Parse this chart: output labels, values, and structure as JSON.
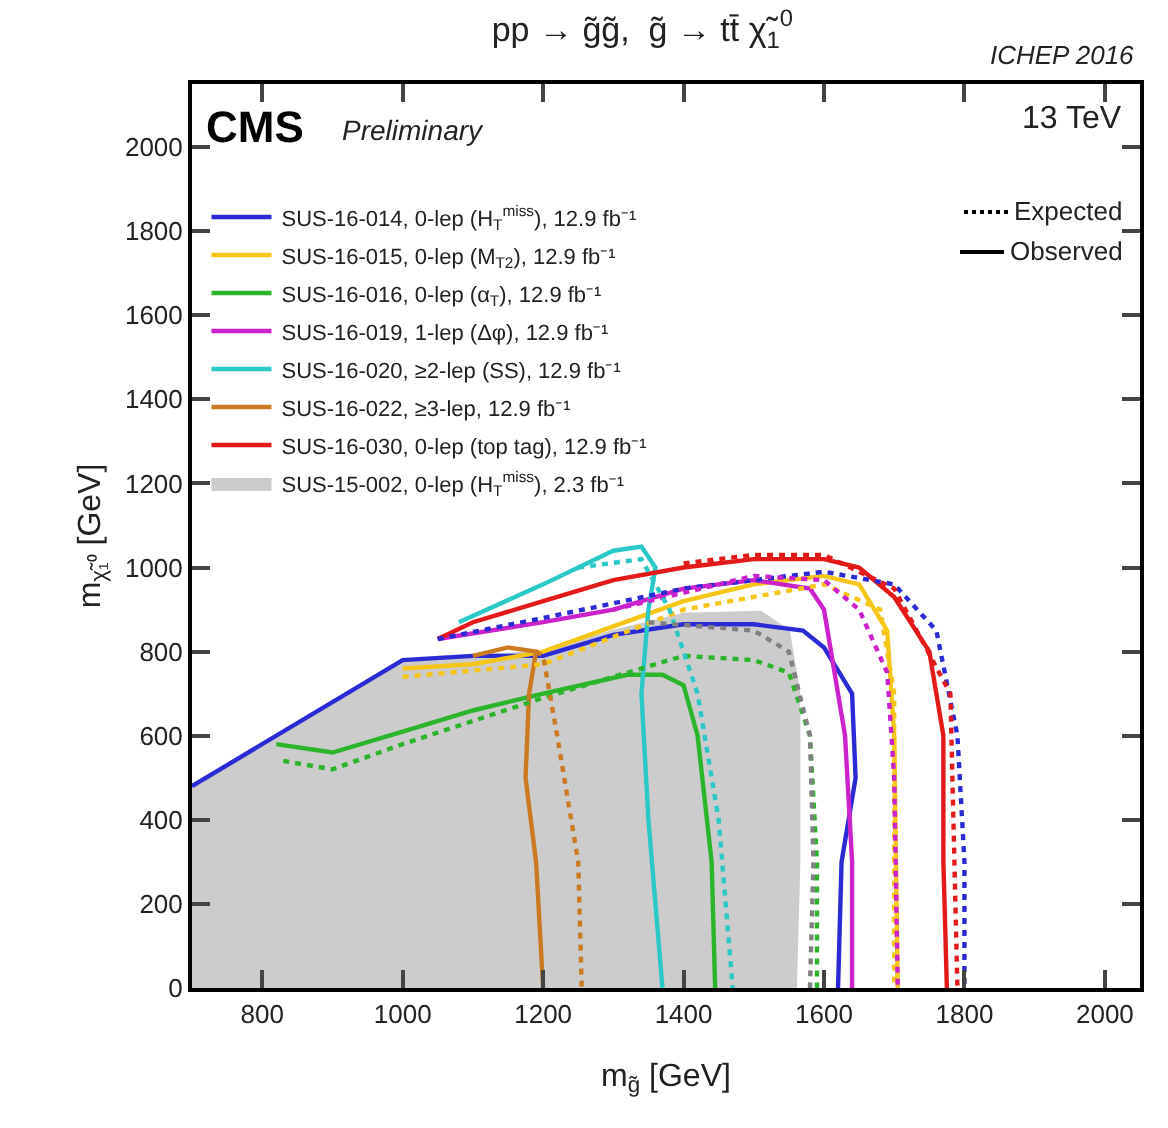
{
  "chart_data": {
    "type": "line",
    "title": "pp → g̃g̃,  g̃ → tt̄ χ̃$_{1}$$^{0}$",
    "xlabel": "m$_{g̃}$ [GeV]",
    "ylabel": "m$_{χ̃₁⁰}$ [GeV]",
    "annotations": [
      "ICHEP 2016",
      "CMS",
      "Preliminary",
      "13 TeV",
      "Expected",
      "Observed"
    ],
    "xlim": [
      700,
      2050
    ],
    "ylim": [
      0,
      2150
    ],
    "xticks": [
      800,
      1000,
      1200,
      1400,
      1600,
      1800,
      2000
    ],
    "yticks": [
      0,
      200,
      400,
      600,
      800,
      1000,
      1200,
      1400,
      1600,
      1800,
      2000
    ],
    "legend": "top left",
    "marker": "none",
    "series": [
      {
        "name": "SUS-16-014, 0-lep (H$_{T}$$^{miss}$), 12.9 fb⁻¹",
        "color": "#2b2bd6",
        "line_style": "solid",
        "x": [
          700,
          1000,
          1100,
          1200,
          1300,
          1400,
          1500,
          1570,
          1600,
          1640,
          1645,
          1625,
          1620
        ],
        "values": [
          480,
          780,
          790,
          790,
          840,
          865,
          865,
          850,
          810,
          700,
          500,
          300,
          0
        ]
      },
      {
        "name": "SUS-16-015, 0-lep (M$_{T2}$), 12.9 fb⁻¹",
        "color": "#f5c518",
        "line_style": "solid",
        "x": [
          1000,
          1100,
          1200,
          1300,
          1400,
          1500,
          1600,
          1650,
          1690,
          1700,
          1705
        ],
        "values": [
          760,
          770,
          800,
          860,
          920,
          960,
          980,
          960,
          850,
          600,
          0
        ]
      },
      {
        "name": "SUS-16-016, 0-lep (α$_{T}$), 12.9 fb⁻¹",
        "color": "#2ab52a",
        "line_style": "solid",
        "x": [
          820,
          900,
          1000,
          1100,
          1200,
          1320,
          1370,
          1400,
          1420,
          1440,
          1445
        ],
        "values": [
          580,
          560,
          610,
          660,
          700,
          745,
          745,
          720,
          600,
          300,
          0
        ]
      },
      {
        "name": "SUS-16-019, 1-lep (Δφ), 12.9 fb⁻¹",
        "color": "#cc22cc",
        "line_style": "solid",
        "x": [
          1050,
          1200,
          1300,
          1400,
          1500,
          1580,
          1600,
          1610,
          1630,
          1640,
          1640
        ],
        "values": [
          830,
          870,
          900,
          950,
          970,
          950,
          900,
          800,
          600,
          300,
          0
        ]
      },
      {
        "name": "SUS-16-020, ≥2-lep (SS), 12.9 fb⁻¹",
        "color": "#2bc8c8",
        "line_style": "solid",
        "x": [
          1080,
          1200,
          1300,
          1340,
          1360,
          1350,
          1340,
          1350,
          1370
        ],
        "values": [
          870,
          960,
          1040,
          1050,
          1000,
          900,
          700,
          400,
          0
        ]
      },
      {
        "name": "SUS-16-022, ≥3-lep, 12.9 fb⁻¹",
        "color": "#cc7a22",
        "line_style": "solid",
        "x": [
          1100,
          1150,
          1190,
          1180,
          1175,
          1190,
          1200
        ],
        "values": [
          790,
          810,
          800,
          700,
          500,
          300,
          0
        ]
      },
      {
        "name": "SUS-16-030, 0-lep (top tag), 12.9 fb⁻¹",
        "color": "#e41a1a",
        "line_style": "solid",
        "x": [
          1050,
          1100,
          1200,
          1300,
          1400,
          1500,
          1600,
          1650,
          1700,
          1750,
          1770,
          1770,
          1775
        ],
        "values": [
          830,
          870,
          920,
          970,
          1000,
          1020,
          1020,
          1000,
          930,
          800,
          600,
          300,
          0
        ]
      },
      {
        "name": "SUS-15-002, 0-lep (H$_{T}$$^{miss}$), 2.3 fb⁻¹",
        "color": "#cccccc",
        "type": "area",
        "x": [
          700,
          1000,
          1200,
          1300,
          1400,
          1510,
          1550,
          1565,
          1565,
          1560,
          700
        ],
        "values": [
          480,
          780,
          800,
          850,
          890,
          895,
          850,
          700,
          300,
          0,
          0
        ]
      },
      {
        "color": "#2b2bd6",
        "line_style": "dotted",
        "x": [
          1050,
          1200,
          1400,
          1600,
          1700,
          1760,
          1790,
          1800,
          1800
        ],
        "values": [
          830,
          880,
          950,
          990,
          960,
          850,
          600,
          300,
          0
        ]
      },
      {
        "color": "#f5c518",
        "line_style": "dotted",
        "x": [
          1000,
          1200,
          1400,
          1600,
          1680,
          1700,
          1700
        ],
        "values": [
          740,
          770,
          900,
          960,
          900,
          700,
          0
        ]
      },
      {
        "color": "#2ab52a",
        "line_style": "dotted",
        "x": [
          830,
          900,
          1000,
          1200,
          1400,
          1500,
          1550,
          1580,
          1590,
          1590
        ],
        "values": [
          540,
          520,
          580,
          690,
          790,
          780,
          750,
          600,
          300,
          0
        ]
      },
      {
        "color": "#cc22cc",
        "line_style": "dotted",
        "x": [
          1300,
          1500,
          1600,
          1650,
          1690,
          1700,
          1705
        ],
        "values": [
          900,
          980,
          970,
          900,
          750,
          500,
          0
        ]
      },
      {
        "color": "#2bc8c8",
        "line_style": "dotted",
        "x": [
          1250,
          1340,
          1380,
          1420,
          1450,
          1470
        ],
        "values": [
          1000,
          1020,
          900,
          700,
          400,
          0
        ]
      },
      {
        "color": "#cc7a22",
        "line_style": "dotted",
        "x": [
          1190,
          1200,
          1220,
          1250,
          1255
        ],
        "values": [
          800,
          790,
          600,
          300,
          0
        ]
      },
      {
        "color": "#e41a1a",
        "line_style": "dotted",
        "x": [
          1400,
          1500,
          1600,
          1700,
          1780,
          1790
        ],
        "values": [
          1010,
          1030,
          1030,
          950,
          700,
          0
        ]
      },
      {
        "color": "#808080",
        "line_style": "dotted",
        "x": [
          1350,
          1500,
          1550,
          1580,
          1585,
          1580
        ],
        "values": [
          870,
          850,
          800,
          600,
          300,
          0
        ]
      }
    ]
  }
}
